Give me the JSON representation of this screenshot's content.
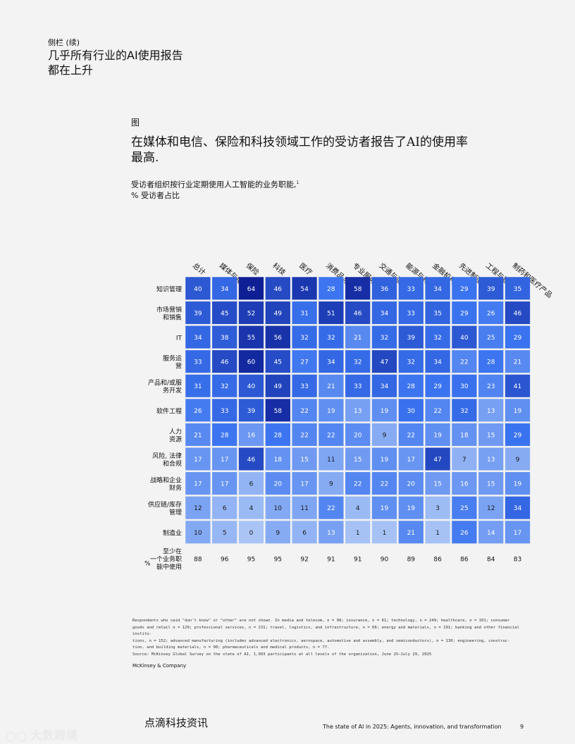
{
  "header": {
    "sidebar_label": "侧栏 (续)",
    "title_line1": "几乎所有行业的AI使用报告",
    "title_line2": "都在上升"
  },
  "figure": {
    "label": "图",
    "title_line1": "在媒体和电信、保险和科技领域工作的受访者报告了AI的使用率",
    "title_line2": "最高.",
    "subtitle_line1": "受访者组织按行业定期使用人工智能的业务职能,",
    "subtitle_sup": "1",
    "subtitle_line2": "% 受访者占比"
  },
  "chart_data": {
    "type": "heatmap",
    "columns": [
      "总计",
      "媒体与电信",
      "保险",
      "科技",
      "医疗",
      "消费品与零售",
      "专业服务",
      "交通与运输",
      "能源与材料",
      "金融机构",
      "先进制造",
      "工程与建造",
      "制药和医疗产品"
    ],
    "rows": [
      {
        "label": [
          "知识管理"
        ],
        "values": [
          40,
          34,
          64,
          46,
          54,
          28,
          58,
          36,
          33,
          34,
          29,
          39,
          35
        ]
      },
      {
        "label": [
          "市场营销",
          "和销售"
        ],
        "values": [
          39,
          45,
          52,
          49,
          31,
          51,
          46,
          34,
          33,
          35,
          29,
          26,
          46
        ]
      },
      {
        "label": [
          "IT"
        ],
        "values": [
          34,
          38,
          55,
          56,
          32,
          32,
          21,
          32,
          39,
          32,
          40,
          25,
          29
        ]
      },
      {
        "label": [
          "服务运",
          "营"
        ],
        "values": [
          33,
          46,
          60,
          45,
          27,
          34,
          32,
          47,
          32,
          34,
          22,
          28,
          21
        ]
      },
      {
        "label": [
          "产品和/或服",
          "务开发"
        ],
        "values": [
          31,
          32,
          40,
          49,
          33,
          21,
          33,
          34,
          28,
          29,
          30,
          23,
          41
        ]
      },
      {
        "label": [
          "软件工程"
        ],
        "values": [
          26,
          33,
          39,
          58,
          22,
          19,
          13,
          19,
          30,
          22,
          32,
          13,
          19
        ]
      },
      {
        "label": [
          "人力",
          "资源"
        ],
        "values": [
          21,
          28,
          16,
          28,
          22,
          22,
          20,
          9,
          22,
          19,
          18,
          15,
          29
        ]
      },
      {
        "label": [
          "风险, 法律",
          "和合规"
        ],
        "values": [
          17,
          17,
          46,
          18,
          15,
          11,
          15,
          19,
          17,
          47,
          7,
          13,
          9
        ]
      },
      {
        "label": [
          "战略和企业",
          "财务"
        ],
        "values": [
          17,
          17,
          6,
          20,
          17,
          9,
          22,
          22,
          20,
          15,
          16,
          15,
          19
        ]
      },
      {
        "label": [
          "供应链/库存",
          "管理"
        ],
        "values": [
          12,
          6,
          4,
          10,
          11,
          22,
          4,
          19,
          19,
          3,
          25,
          12,
          34
        ]
      },
      {
        "label": [
          "制造业"
        ],
        "values": [
          10,
          5,
          0,
          9,
          6,
          13,
          1,
          1,
          21,
          1,
          26,
          14,
          17
        ]
      }
    ],
    "total_row": {
      "label": [
        "至少在",
        "一个业务职",
        "能中使用"
      ],
      "label_prefix": "%",
      "values": [
        88,
        96,
        95,
        95,
        92,
        91,
        91,
        90,
        89,
        86,
        86,
        84,
        83
      ]
    },
    "value_range": [
      0,
      64
    ],
    "colors": {
      "low": "#aac5f5",
      "mid": "#3a73f0",
      "high": "#0e1f96",
      "grid_gap": "#ffffff",
      "text_light": "#ffffff",
      "text_dark": "#1a1a1a"
    }
  },
  "notes": {
    "line1": "Respondents who said \"don't know\" or \"other\" are not shown. In media and telecom, n = 98; insurance, n = 61; technology, n = 249; healthcare, n = 101; consumer",
    "line2": "goods and retail n = 129; professional services, n = 231; travel, logistics, and infrastructure, n = 66; energy and materials, n = 191; banking and other financial institu-",
    "line3": "tions, n = 152; advanced manufacturing (includes advanced electronics, aerospace, automotive and assembly, and semiconductors), n = 130; engineering, construc-",
    "line4": "tion, and building materials, n = 90; pharmaceuticals and medical products, n = 77.",
    "line5": "Source: McKinsey Global Survey on the state of AI, 1,993 participants at all levels of the organization, June 25–July 29, 2025",
    "publisher": "McKinsey & Company"
  },
  "footer": {
    "brand": "点滴科技资讯",
    "report": "The state of AI in 2025: Agents, innovation, and transformation",
    "page": "9",
    "watermark": "大数跨境"
  }
}
